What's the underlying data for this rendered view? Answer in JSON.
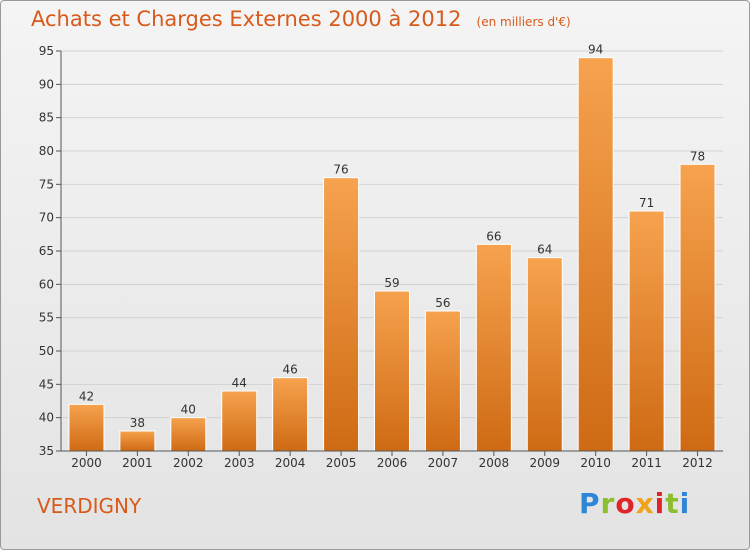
{
  "header": {
    "title": "Achats et Charges Externes 2000 à 2012",
    "unit": "(en milliers d'€)"
  },
  "footer": {
    "commune": "VERDIGNY",
    "logo": "Proxiti"
  },
  "colors": {
    "title": "#d85a1a",
    "bar_top": "#f6a24e",
    "bar_bottom": "#cf6a14"
  },
  "chart_data": {
    "type": "bar",
    "title": "Achats et Charges Externes 2000 à 2012",
    "subtitle": "(en milliers d'€)",
    "categories": [
      "2000",
      "2001",
      "2002",
      "2003",
      "2004",
      "2005",
      "2006",
      "2007",
      "2008",
      "2009",
      "2010",
      "2011",
      "2012"
    ],
    "values": [
      42,
      38,
      40,
      44,
      46,
      76,
      59,
      56,
      66,
      64,
      94,
      71,
      78
    ],
    "ylim": [
      35,
      95
    ],
    "yticks": [
      35,
      40,
      45,
      50,
      55,
      60,
      65,
      70,
      75,
      80,
      85,
      90,
      95
    ],
    "grid": true,
    "xlabel": "",
    "ylabel": ""
  }
}
